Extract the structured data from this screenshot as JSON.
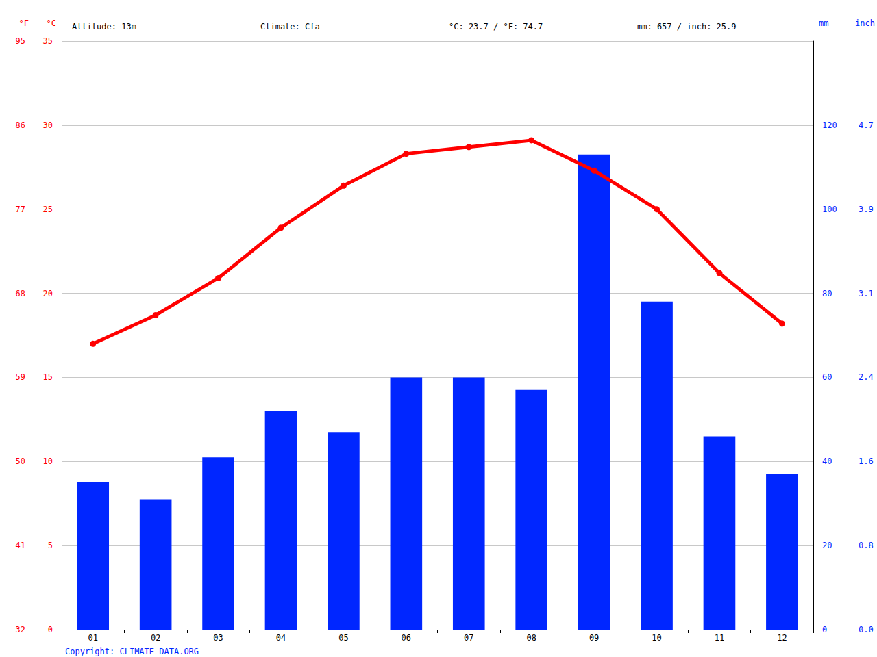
{
  "chart_data": {
    "type": "bar",
    "annotations": [
      "Altitude: 13m",
      "Climate: Cfa",
      "°C: 23.7 / °F: 74.7",
      "mm: 657 / inch: 25.9"
    ],
    "copyright": "Copyright: CLIMATE-DATA.ORG",
    "categories": [
      "01",
      "02",
      "03",
      "04",
      "05",
      "06",
      "07",
      "08",
      "09",
      "10",
      "11",
      "12"
    ],
    "series": [
      {
        "type": "bar",
        "axis": "y2",
        "color": "#0026ff",
        "values": [
          35,
          31,
          41,
          52,
          47,
          60,
          60,
          57,
          113,
          78,
          46,
          37
        ]
      },
      {
        "type": "line",
        "axis": "y",
        "color": "#ff0000",
        "marker": "circle",
        "values": [
          17.0,
          18.7,
          20.9,
          23.9,
          26.4,
          28.3,
          28.7,
          29.1,
          27.3,
          25.0,
          21.2,
          18.2
        ]
      }
    ],
    "ylabel": "°C",
    "ylim": [
      0,
      35
    ],
    "yticks": [
      0,
      5,
      10,
      15,
      20,
      25,
      30,
      35
    ],
    "y3label": "°F",
    "y3lim": [
      32,
      95
    ],
    "y3ticks": [
      32,
      41,
      50,
      59,
      68,
      77,
      86,
      95
    ],
    "y2label": "mm",
    "y2lim": [
      0,
      140
    ],
    "y2ticks": [
      0,
      20,
      40,
      60,
      80,
      100,
      120
    ],
    "y4label": "inch",
    "y4lim": [
      0,
      5.512
    ],
    "y4ticks": [
      {
        "value": 0,
        "label": "0.0"
      },
      {
        "value": 0.787,
        "label": "0.8"
      },
      {
        "value": 1.575,
        "label": "1.6"
      },
      {
        "value": 2.362,
        "label": "2.4"
      },
      {
        "value": 3.15,
        "label": "3.1"
      },
      {
        "value": 3.937,
        "label": "3.9"
      },
      {
        "value": 4.724,
        "label": "4.7"
      }
    ],
    "grid": true
  }
}
